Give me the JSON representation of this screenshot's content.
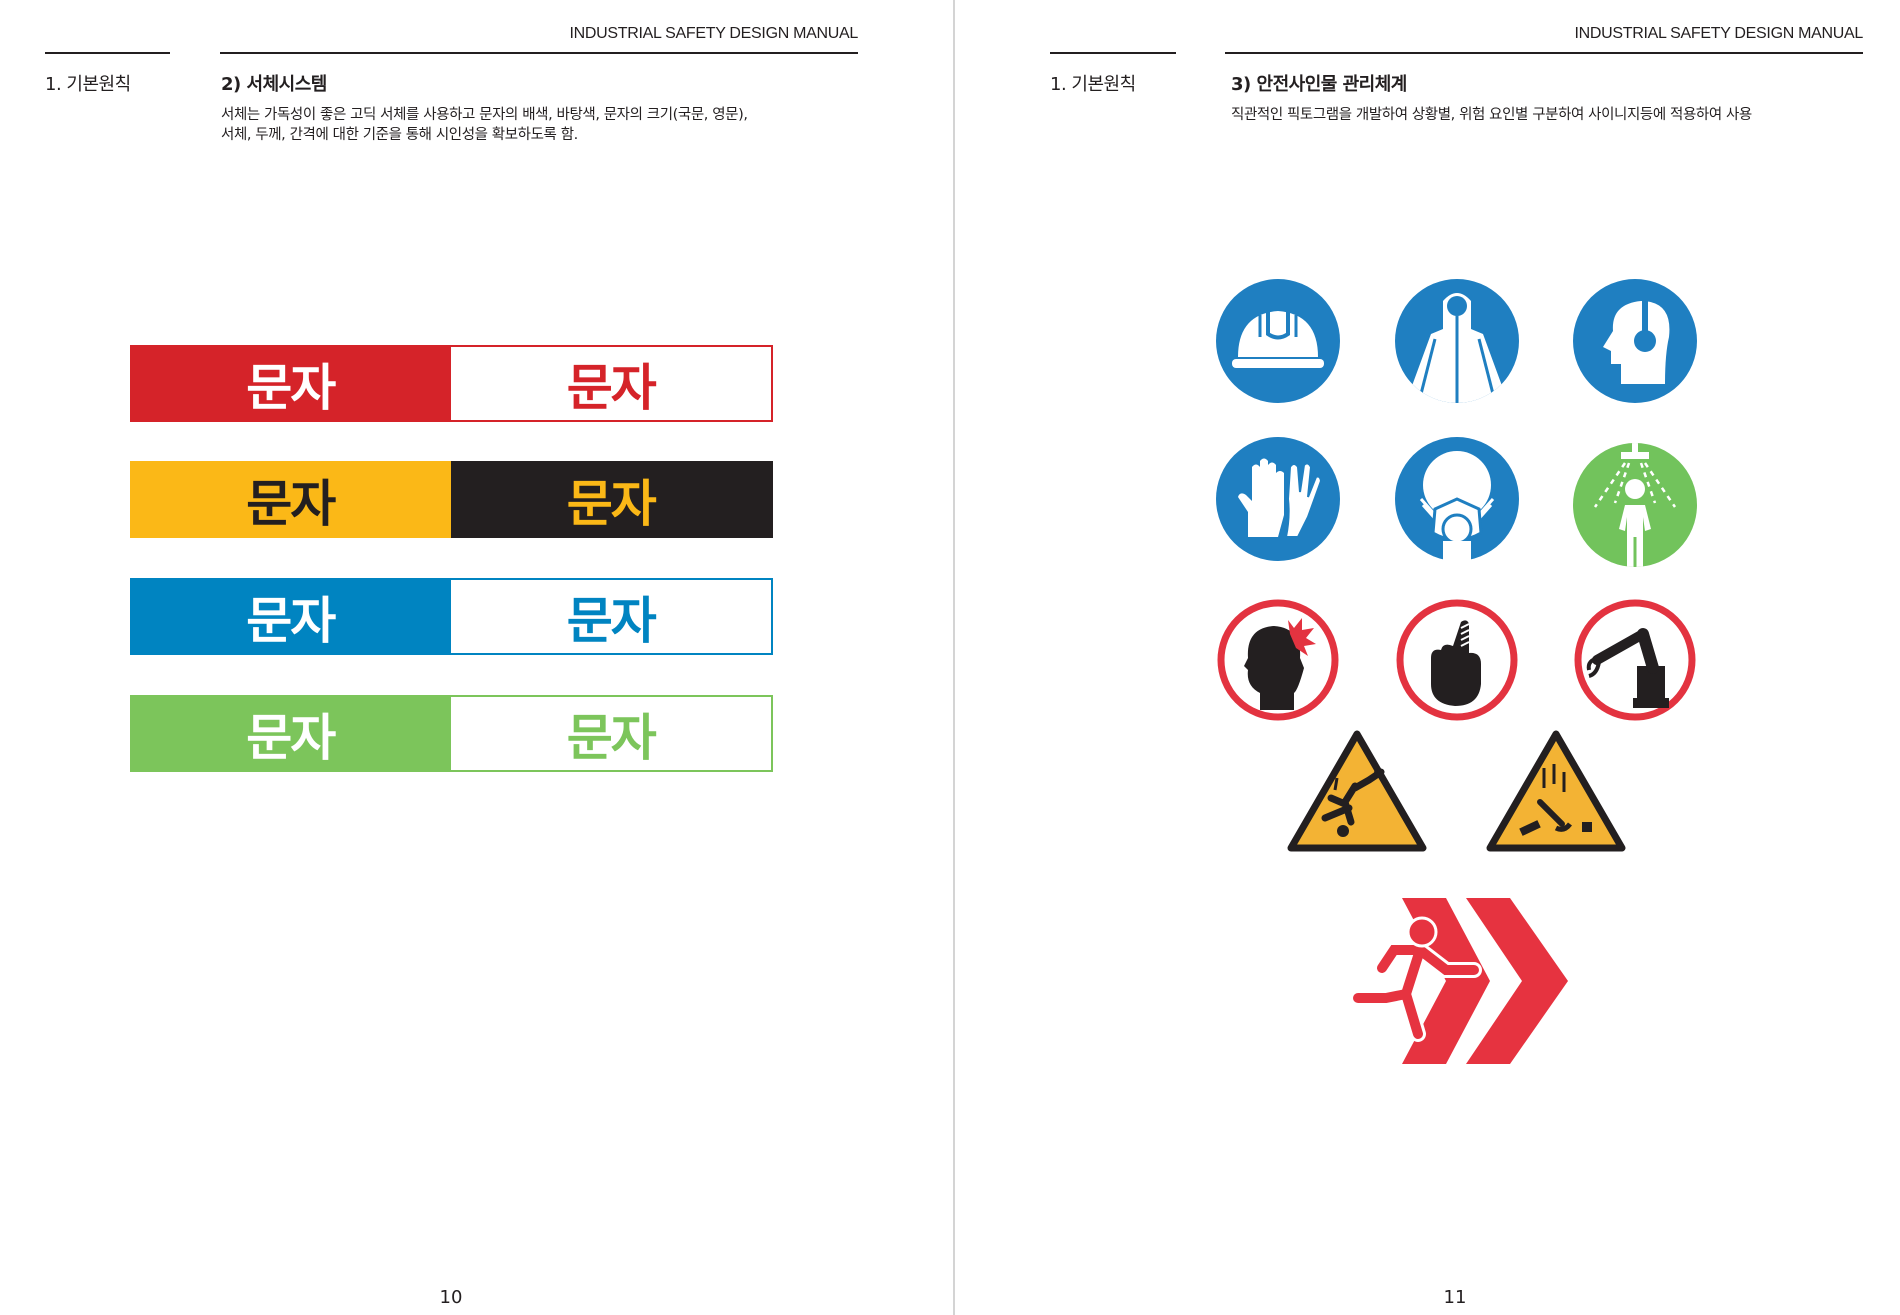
{
  "header": {
    "running_title": "INDUSTRIAL SAFETY DESIGN MANUAL"
  },
  "left_page": {
    "chapter": "1. 기본원칙",
    "section_title": "2) 서체시스템",
    "description_line1": "서체는 가독성이 좋은 고딕 서체를 사용하고 문자의 배색, 바탕색, 문자의 크기(국문, 영문),",
    "description_line2": "서체, 두께, 간격에 대한 기준을 통해 시인성을 확보하도록 함.",
    "sample_text": "문자",
    "color_bars": [
      {
        "left_bg": "#d52329",
        "left_fg": "#ffffff",
        "right_bg": "#ffffff",
        "right_fg": "#d52329",
        "border": "#d52329",
        "label_left": "문자",
        "label_right": "문자"
      },
      {
        "left_bg": "#fbb817",
        "left_fg": "#231f20",
        "right_bg": "#231f20",
        "right_fg": "#fbb817",
        "border": "#231f20",
        "label_left": "문자",
        "label_right": "문자"
      },
      {
        "left_bg": "#0084c1",
        "left_fg": "#ffffff",
        "right_bg": "#ffffff",
        "right_fg": "#0084c1",
        "border": "#0084c1",
        "label_left": "문자",
        "label_right": "문자"
      },
      {
        "left_bg": "#7cc55b",
        "left_fg": "#ffffff",
        "right_bg": "#ffffff",
        "right_fg": "#7cc55b",
        "border": "#7cc55b",
        "label_left": "문자",
        "label_right": "문자"
      }
    ],
    "page_number": "10"
  },
  "right_page": {
    "chapter": "1. 기본원칙",
    "section_title": "3) 안전사인물 관리체계",
    "description": "직관적인 픽토그램을 개발하여 상황별, 위험 요인별 구분하여 사이니지등에 적용하여 사용",
    "pictograms": [
      {
        "icon": "hard-hat-icon",
        "type": "mandatory",
        "color": "#1f7fc1"
      },
      {
        "icon": "protective-suit-icon",
        "type": "mandatory",
        "color": "#1f7fc1"
      },
      {
        "icon": "ear-protection-icon",
        "type": "mandatory",
        "color": "#1f7fc1"
      },
      {
        "icon": "gloves-icon",
        "type": "mandatory",
        "color": "#1f7fc1"
      },
      {
        "icon": "respirator-mask-icon",
        "type": "mandatory",
        "color": "#1f7fc1"
      },
      {
        "icon": "safety-shower-icon",
        "type": "safe-condition",
        "color": "#72c35c"
      },
      {
        "icon": "head-injury-icon",
        "type": "prohibition",
        "color": "#e33340"
      },
      {
        "icon": "finger-pinch-icon",
        "type": "prohibition",
        "color": "#e33340"
      },
      {
        "icon": "robot-arm-icon",
        "type": "prohibition",
        "color": "#e33340"
      },
      {
        "icon": "falling-person-icon",
        "type": "warning",
        "color": "#f3b334"
      },
      {
        "icon": "falling-objects-icon",
        "type": "warning",
        "color": "#f3b334"
      },
      {
        "icon": "emergency-exit-icon",
        "type": "exit",
        "color": "#e63340"
      }
    ],
    "page_number": "11"
  }
}
